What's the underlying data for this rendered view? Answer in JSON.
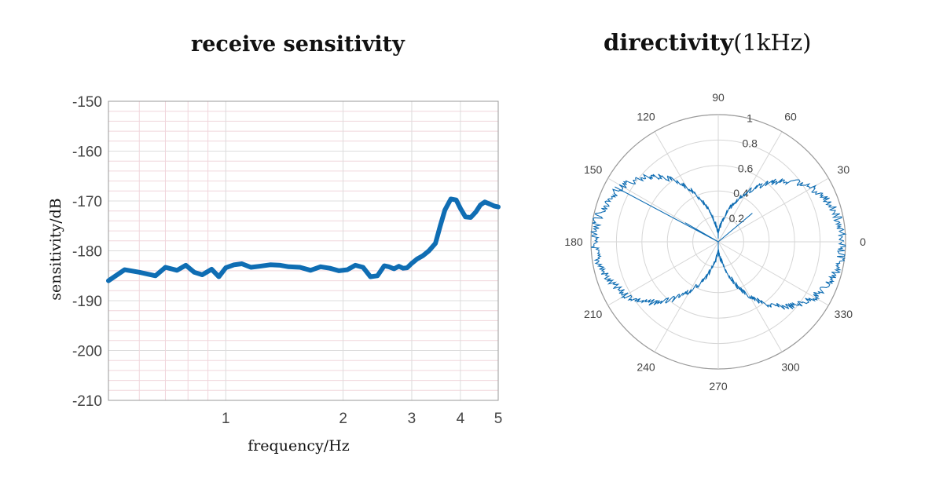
{
  "titles": {
    "left": "receive sensitivity",
    "right_bold": "directivity",
    "right_suffix": "(1kHz)"
  },
  "colors": {
    "series": "#0f6db3",
    "grid_minor": "#f0d6dc",
    "grid_major": "#dcdcdc",
    "axis": "#9a9a9a"
  },
  "chart_data": [
    {
      "type": "line",
      "title": "receive sensitivity",
      "xlabel": "frequency/Hz",
      "ylabel": "sensitivity/dB",
      "xscale": "log",
      "xlim": [
        0.5,
        5
      ],
      "ylim": [
        -210,
        -150
      ],
      "xticks": [
        1,
        2,
        3,
        4,
        5
      ],
      "yticks": [
        -150,
        -160,
        -170,
        -180,
        -190,
        -200,
        -210
      ],
      "grid": true,
      "series": [
        {
          "x": [
            0.5,
            0.55,
            0.6,
            0.66,
            0.7,
            0.75,
            0.79,
            0.83,
            0.87,
            0.92,
            0.96,
            1.0,
            1.05,
            1.1,
            1.16,
            1.22,
            1.3,
            1.38,
            1.45,
            1.55,
            1.65,
            1.75,
            1.85,
            1.95,
            2.05,
            2.15,
            2.25,
            2.35,
            2.45,
            2.55,
            2.62,
            2.7,
            2.78,
            2.85,
            2.92,
            3.0,
            3.1,
            3.2,
            3.32,
            3.45,
            3.55,
            3.65,
            3.78,
            3.9,
            4.0,
            4.12,
            4.25,
            4.38,
            4.5,
            4.62,
            4.75,
            4.88,
            5.0
          ],
          "y": [
            -186,
            -183.8,
            -184.3,
            -185,
            -183.3,
            -183.9,
            -182.9,
            -184.3,
            -184.8,
            -183.7,
            -185.2,
            -183.4,
            -182.8,
            -182.6,
            -183.3,
            -183.1,
            -182.8,
            -182.9,
            -183.2,
            -183.3,
            -183.9,
            -183.2,
            -183.5,
            -184,
            -183.8,
            -182.9,
            -183.3,
            -185.2,
            -185,
            -183,
            -183.2,
            -183.6,
            -183.1,
            -183.5,
            -183.4,
            -182.5,
            -181.6,
            -181,
            -180,
            -178.5,
            -175,
            -171.8,
            -169.6,
            -169.8,
            -171.5,
            -173.2,
            -173.3,
            -172.2,
            -170.8,
            -170.2,
            -170.6,
            -171,
            -171.2
          ]
        }
      ]
    },
    {
      "type": "polar",
      "title": "directivity(1kHz)",
      "angle_ticks": [
        0,
        30,
        60,
        90,
        120,
        150,
        180,
        210,
        240,
        270,
        300,
        330
      ],
      "radial_ticks": [
        0.2,
        0.4,
        0.6,
        0.8,
        1
      ],
      "rlim": [
        0,
        1
      ],
      "pattern": "figure-eight (dipole)",
      "series": [
        {
          "theta_deg": [
            0,
            10,
            20,
            30,
            40,
            50,
            60,
            70,
            80,
            90,
            100,
            110,
            120,
            130,
            140,
            150,
            160,
            170,
            180,
            190,
            200,
            210,
            220,
            230,
            240,
            250,
            260,
            270,
            280,
            290,
            300,
            310,
            320,
            330,
            340,
            350
          ],
          "r": [
            0.98,
            0.96,
            0.92,
            0.85,
            0.74,
            0.6,
            0.45,
            0.3,
            0.15,
            0.05,
            0.15,
            0.32,
            0.5,
            0.66,
            0.78,
            0.87,
            0.93,
            0.97,
            0.98,
            0.95,
            0.91,
            0.84,
            0.74,
            0.6,
            0.45,
            0.3,
            0.15,
            0.08,
            0.15,
            0.32,
            0.5,
            0.66,
            0.78,
            0.87,
            0.93,
            0.97
          ]
        }
      ]
    }
  ]
}
